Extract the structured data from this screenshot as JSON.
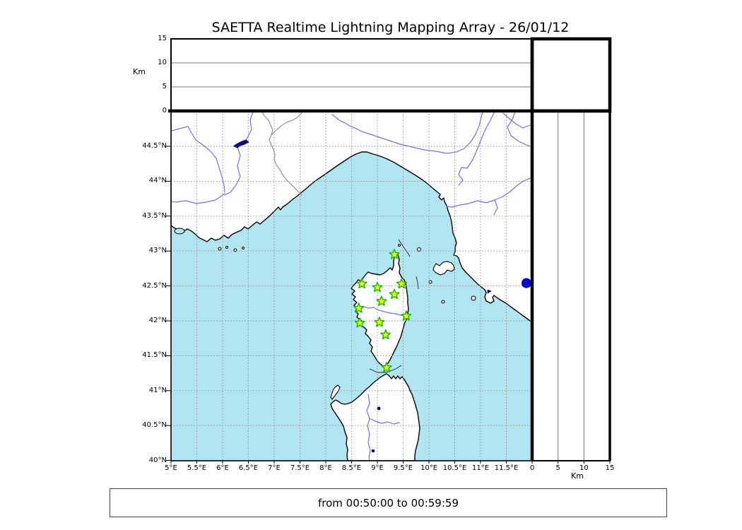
{
  "title": "SAETTA Realtime Lightning Mapping Array - 26/01/12",
  "status_bar": {
    "text": "from 00:50:00 to 00:59:59"
  },
  "colors": {
    "sea": "#b2e5f2",
    "land": "#ffffff",
    "coastline": "#000000",
    "river": "#7070f0",
    "lake": "#000080",
    "country_border": "#808080",
    "grid": "#8a8a8a",
    "panel_grid": "#777777",
    "station_fill": "#ffff00",
    "station_stroke": "#00c000",
    "detection": "#0000cc"
  },
  "chart_data": {
    "type": "map",
    "title": "SAETTA Realtime Lightning Mapping Array - 26/01/12",
    "time_window": "from 00:50:00 to 00:59:59",
    "map_panel": {
      "lon_range": [
        5,
        12
      ],
      "lat_range": [
        40,
        45
      ],
      "lon_tick_values": [
        5,
        5.5,
        6,
        6.5,
        7,
        7.5,
        8,
        8.5,
        9,
        9.5,
        10,
        10.5,
        11,
        11.5
      ],
      "lon_tick_labels": [
        "5°E",
        "5.5°E",
        "6°E",
        "6.5°E",
        "7°E",
        "7.5°E",
        "8°E",
        "8.5°E",
        "9°E",
        "9.5°E",
        "10°E",
        "10.5°E",
        "11°E",
        "11.5°E"
      ],
      "lat_tick_values": [
        44.5,
        44,
        43.5,
        43,
        42.5,
        42,
        41.5,
        41,
        40.5,
        40
      ],
      "lat_tick_labels": [
        "44.5°N",
        "44°N",
        "43.5°N",
        "43°N",
        "42.5°N",
        "42°N",
        "41.5°N",
        "41°N",
        "40.5°N",
        "40°N"
      ],
      "grid": "dotted"
    },
    "top_panel": {
      "axis_label": "Km",
      "range": [
        0,
        15
      ],
      "tick_values": [
        15,
        10,
        5,
        0
      ],
      "tick_labels": [
        "15",
        "10",
        "5",
        "0"
      ],
      "gridline_values": [
        5,
        10
      ],
      "data_points": []
    },
    "right_panel": {
      "axis_label": "Km",
      "range": [
        0,
        15
      ],
      "tick_values": [
        0,
        5,
        10,
        15
      ],
      "tick_labels": [
        "0",
        "5",
        "10",
        "15"
      ],
      "gridline_values": [
        5,
        10
      ],
      "data_points": []
    },
    "stations": [
      {
        "lon": 9.33,
        "lat": 42.95
      },
      {
        "lon": 8.7,
        "lat": 42.53
      },
      {
        "lon": 9.0,
        "lat": 42.48
      },
      {
        "lon": 9.47,
        "lat": 42.53
      },
      {
        "lon": 9.33,
        "lat": 42.38
      },
      {
        "lon": 9.08,
        "lat": 42.28
      },
      {
        "lon": 8.64,
        "lat": 42.18
      },
      {
        "lon": 9.56,
        "lat": 42.07
      },
      {
        "lon": 8.66,
        "lat": 41.97
      },
      {
        "lon": 9.04,
        "lat": 41.98
      },
      {
        "lon": 9.16,
        "lat": 41.8
      },
      {
        "lon": 9.18,
        "lat": 41.33
      }
    ],
    "detections": [
      {
        "lon": 11.89,
        "lat": 42.54
      }
    ]
  }
}
